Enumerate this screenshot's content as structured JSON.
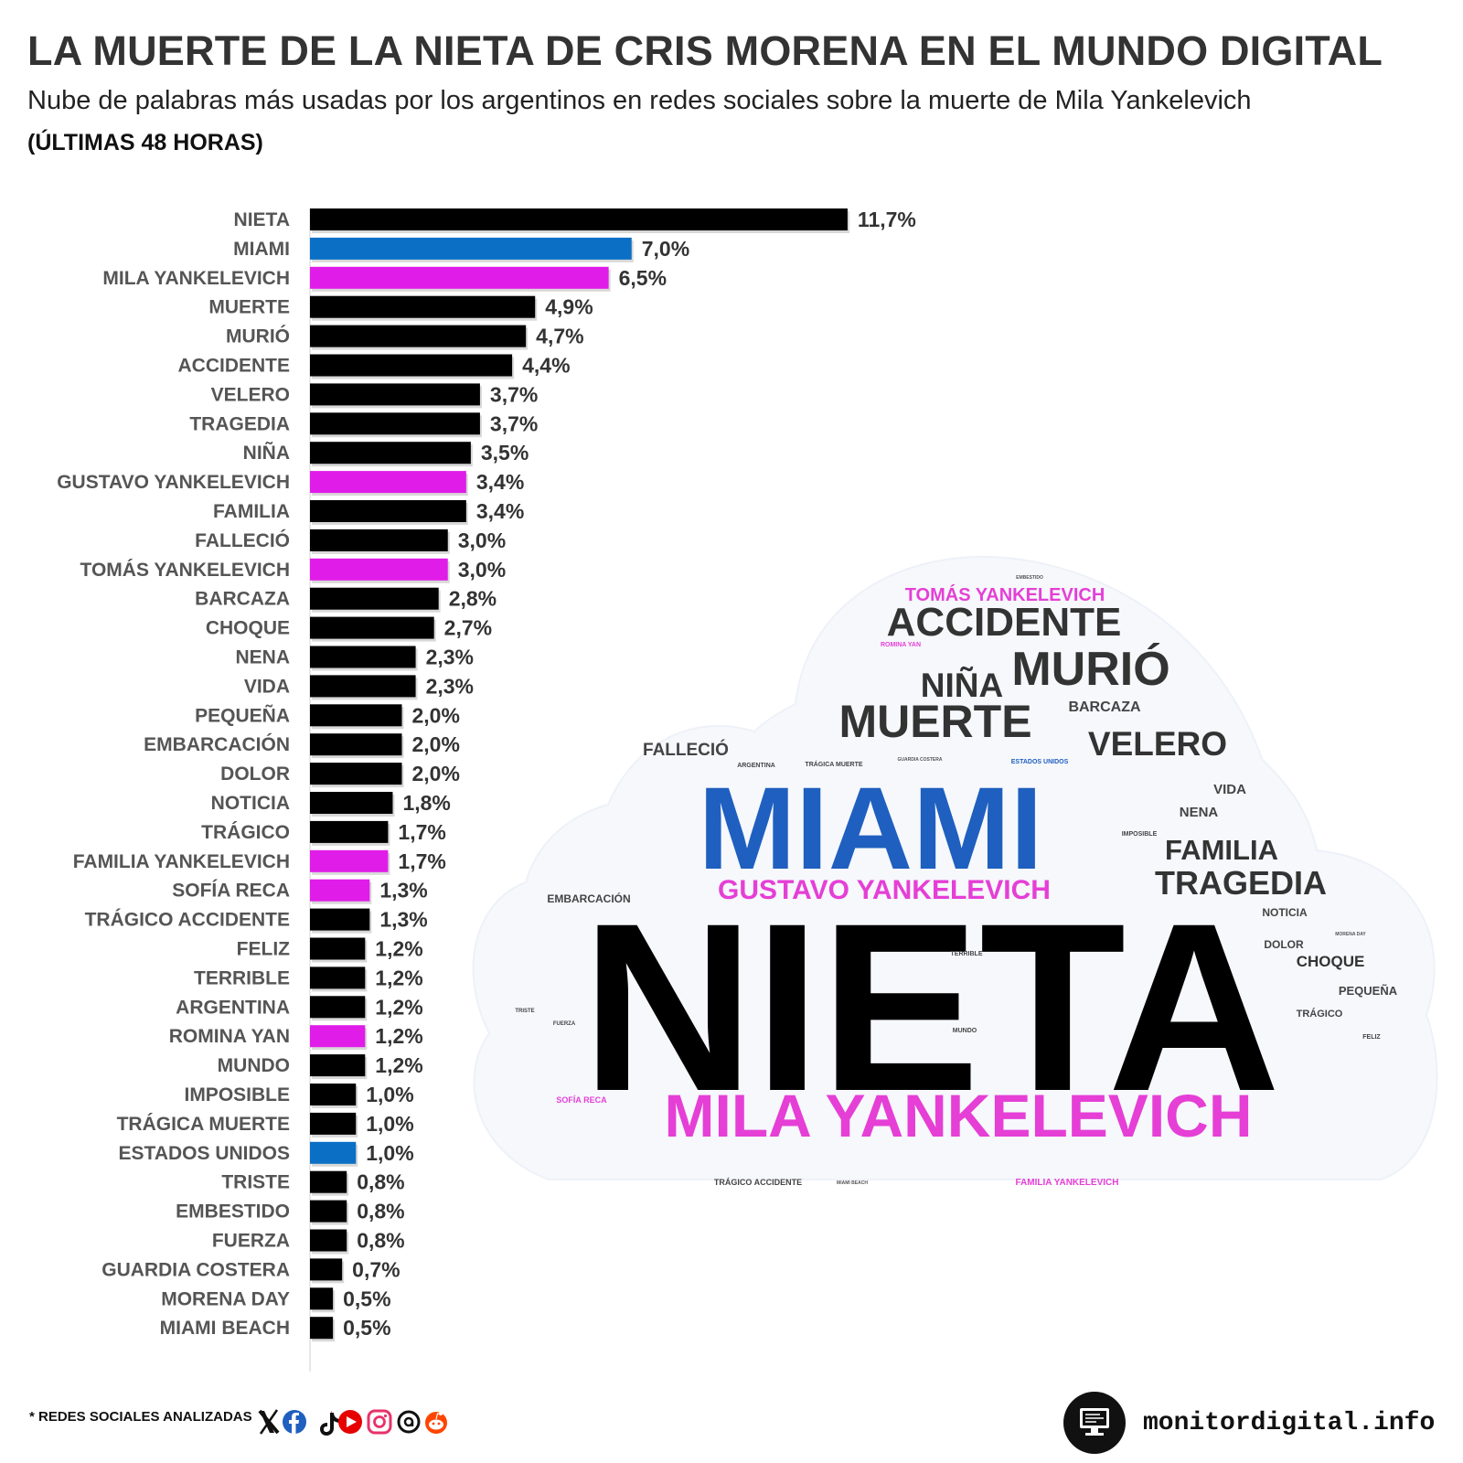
{
  "header": {
    "title": "LA MUERTE DE LA NIETA DE CRIS MORENA EN EL MUNDO DIGITAL",
    "subtitle": "Nube de palabras más usadas por los argentinos en redes sociales sobre la muerte de Mila Yankelevich",
    "period": "(ÚLTIMAS 48 HORAS)"
  },
  "colors": {
    "default_bar": "#000000",
    "location_bar": "#0b6fc6",
    "person_bar": "#e01ce8",
    "cloud_blue": "#1f5fbf",
    "cloud_pink": "#e53fd6"
  },
  "chart_data": {
    "type": "bar",
    "orientation": "horizontal",
    "title": "LA MUERTE DE LA NIETA DE CRIS MORENA EN EL MUNDO DIGITAL",
    "unit": "%",
    "xlim": [
      0,
      12
    ],
    "grid": false,
    "categories": [
      "NIETA",
      "MIAMI",
      "MILA YANKELEVICH",
      "MUERTE",
      "MURIÓ",
      "ACCIDENTE",
      "VELERO",
      "TRAGEDIA",
      "NIÑA",
      "GUSTAVO YANKELEVICH",
      "FAMILIA",
      "FALLECIÓ",
      "TOMÁS YANKELEVICH",
      "BARCAZA",
      "CHOQUE",
      "NENA",
      "VIDA",
      "PEQUEÑA",
      "EMBARCACIÓN",
      "DOLOR",
      "NOTICIA",
      "TRÁGICO",
      "FAMILIA YANKELEVICH",
      "SOFÍA RECA",
      "TRÁGICO ACCIDENTE",
      "FELIZ",
      "TERRIBLE",
      "ARGENTINA",
      "ROMINA YAN",
      "MUNDO",
      "IMPOSIBLE",
      "TRÁGICA MUERTE",
      "ESTADOS UNIDOS",
      "TRISTE",
      "EMBESTIDO",
      "FUERZA",
      "GUARDIA COSTERA",
      "MORENA DAY",
      "MIAMI BEACH"
    ],
    "values": [
      11.7,
      7.0,
      6.5,
      4.9,
      4.7,
      4.4,
      3.7,
      3.7,
      3.5,
      3.4,
      3.4,
      3.0,
      3.0,
      2.8,
      2.7,
      2.3,
      2.3,
      2.0,
      2.0,
      2.0,
      1.8,
      1.7,
      1.7,
      1.3,
      1.3,
      1.2,
      1.2,
      1.2,
      1.2,
      1.2,
      1.0,
      1.0,
      1.0,
      0.8,
      0.8,
      0.8,
      0.7,
      0.5,
      0.5
    ],
    "value_labels": [
      "11,7%",
      "7,0%",
      "6,5%",
      "4,9%",
      "4,7%",
      "4,4%",
      "3,7%",
      "3,7%",
      "3,5%",
      "3,4%",
      "3,4%",
      "3,0%",
      "3,0%",
      "2,8%",
      "2,7%",
      "2,3%",
      "2,3%",
      "2,0%",
      "2,0%",
      "2,0%",
      "1,8%",
      "1,7%",
      "1,7%",
      "1,3%",
      "1,3%",
      "1,2%",
      "1,2%",
      "1,2%",
      "1,2%",
      "1,2%",
      "1,0%",
      "1,0%",
      "1,0%",
      "0,8%",
      "0,8%",
      "0,8%",
      "0,7%",
      "0,5%",
      "0,5%"
    ],
    "color_groups": [
      "default",
      "location",
      "person",
      "default",
      "default",
      "default",
      "default",
      "default",
      "default",
      "person",
      "default",
      "default",
      "person",
      "default",
      "default",
      "default",
      "default",
      "default",
      "default",
      "default",
      "default",
      "default",
      "person",
      "person",
      "default",
      "default",
      "default",
      "default",
      "person",
      "default",
      "default",
      "default",
      "location",
      "default",
      "default",
      "default",
      "default",
      "default",
      "default"
    ]
  },
  "word_cloud": {
    "words": [
      {
        "text": "EMBESTIDO",
        "color": "#555555"
      },
      {
        "text": "TOMÁS YANKELEVICH",
        "color": "#e53fd6"
      },
      {
        "text": "ACCIDENTE",
        "color": "#333333"
      },
      {
        "text": "ROMINA YAN",
        "color": "#e53fd6"
      },
      {
        "text": "NIÑA",
        "color": "#333333"
      },
      {
        "text": "MURIÓ",
        "color": "#333333"
      },
      {
        "text": "BARCAZA",
        "color": "#444444"
      },
      {
        "text": "MUERTE",
        "color": "#333333"
      },
      {
        "text": "FALLECIÓ",
        "color": "#444444"
      },
      {
        "text": "ARGENTINA",
        "color": "#444444"
      },
      {
        "text": "TRÁGICA MUERTE",
        "color": "#444444"
      },
      {
        "text": "GUARDIA COSTERA",
        "color": "#555555"
      },
      {
        "text": "ESTADOS UNIDOS",
        "color": "#1f5fbf"
      },
      {
        "text": "VELERO",
        "color": "#333333"
      },
      {
        "text": "VIDA",
        "color": "#444444"
      },
      {
        "text": "MIAMI",
        "color": "#1f5fbf"
      },
      {
        "text": "NENA",
        "color": "#444444"
      },
      {
        "text": "IMPOSIBLE",
        "color": "#444444"
      },
      {
        "text": "FAMILIA",
        "color": "#333333"
      },
      {
        "text": "GUSTAVO YANKELEVICH",
        "color": "#e53fd6"
      },
      {
        "text": "TRAGEDIA",
        "color": "#333333"
      },
      {
        "text": "EMBARCACIÓN",
        "color": "#444444"
      },
      {
        "text": "NOTICIA",
        "color": "#444444"
      },
      {
        "text": "MORENA DAY",
        "color": "#555555"
      },
      {
        "text": "NIETA",
        "color": "#000000"
      },
      {
        "text": "TERRIBLE",
        "color": "#444444"
      },
      {
        "text": "DOLOR",
        "color": "#444444"
      },
      {
        "text": "CHOQUE",
        "color": "#333333"
      },
      {
        "text": "PEQUEÑA",
        "color": "#444444"
      },
      {
        "text": "TRISTE",
        "color": "#444444"
      },
      {
        "text": "FUERZA",
        "color": "#444444"
      },
      {
        "text": "MUNDO",
        "color": "#444444"
      },
      {
        "text": "TRÁGICO",
        "color": "#444444"
      },
      {
        "text": "FELIZ",
        "color": "#444444"
      },
      {
        "text": "SOFÍA RECA",
        "color": "#e53fd6"
      },
      {
        "text": "MILA YANKELEVICH",
        "color": "#e53fd6"
      },
      {
        "text": "TRÁGICO ACCIDENTE",
        "color": "#444444"
      },
      {
        "text": "MIAMI BEACH",
        "color": "#555555"
      },
      {
        "text": "FAMILIA YANKELEVICH",
        "color": "#e53fd6"
      }
    ]
  },
  "footer": {
    "note": "* REDES SOCIALES ANALIZADAS",
    "social_icons": [
      "x-icon",
      "facebook-icon",
      "tiktok-icon",
      "youtube-icon",
      "instagram-icon",
      "threads-icon",
      "reddit-icon"
    ],
    "brand": "monitordigital.info"
  }
}
